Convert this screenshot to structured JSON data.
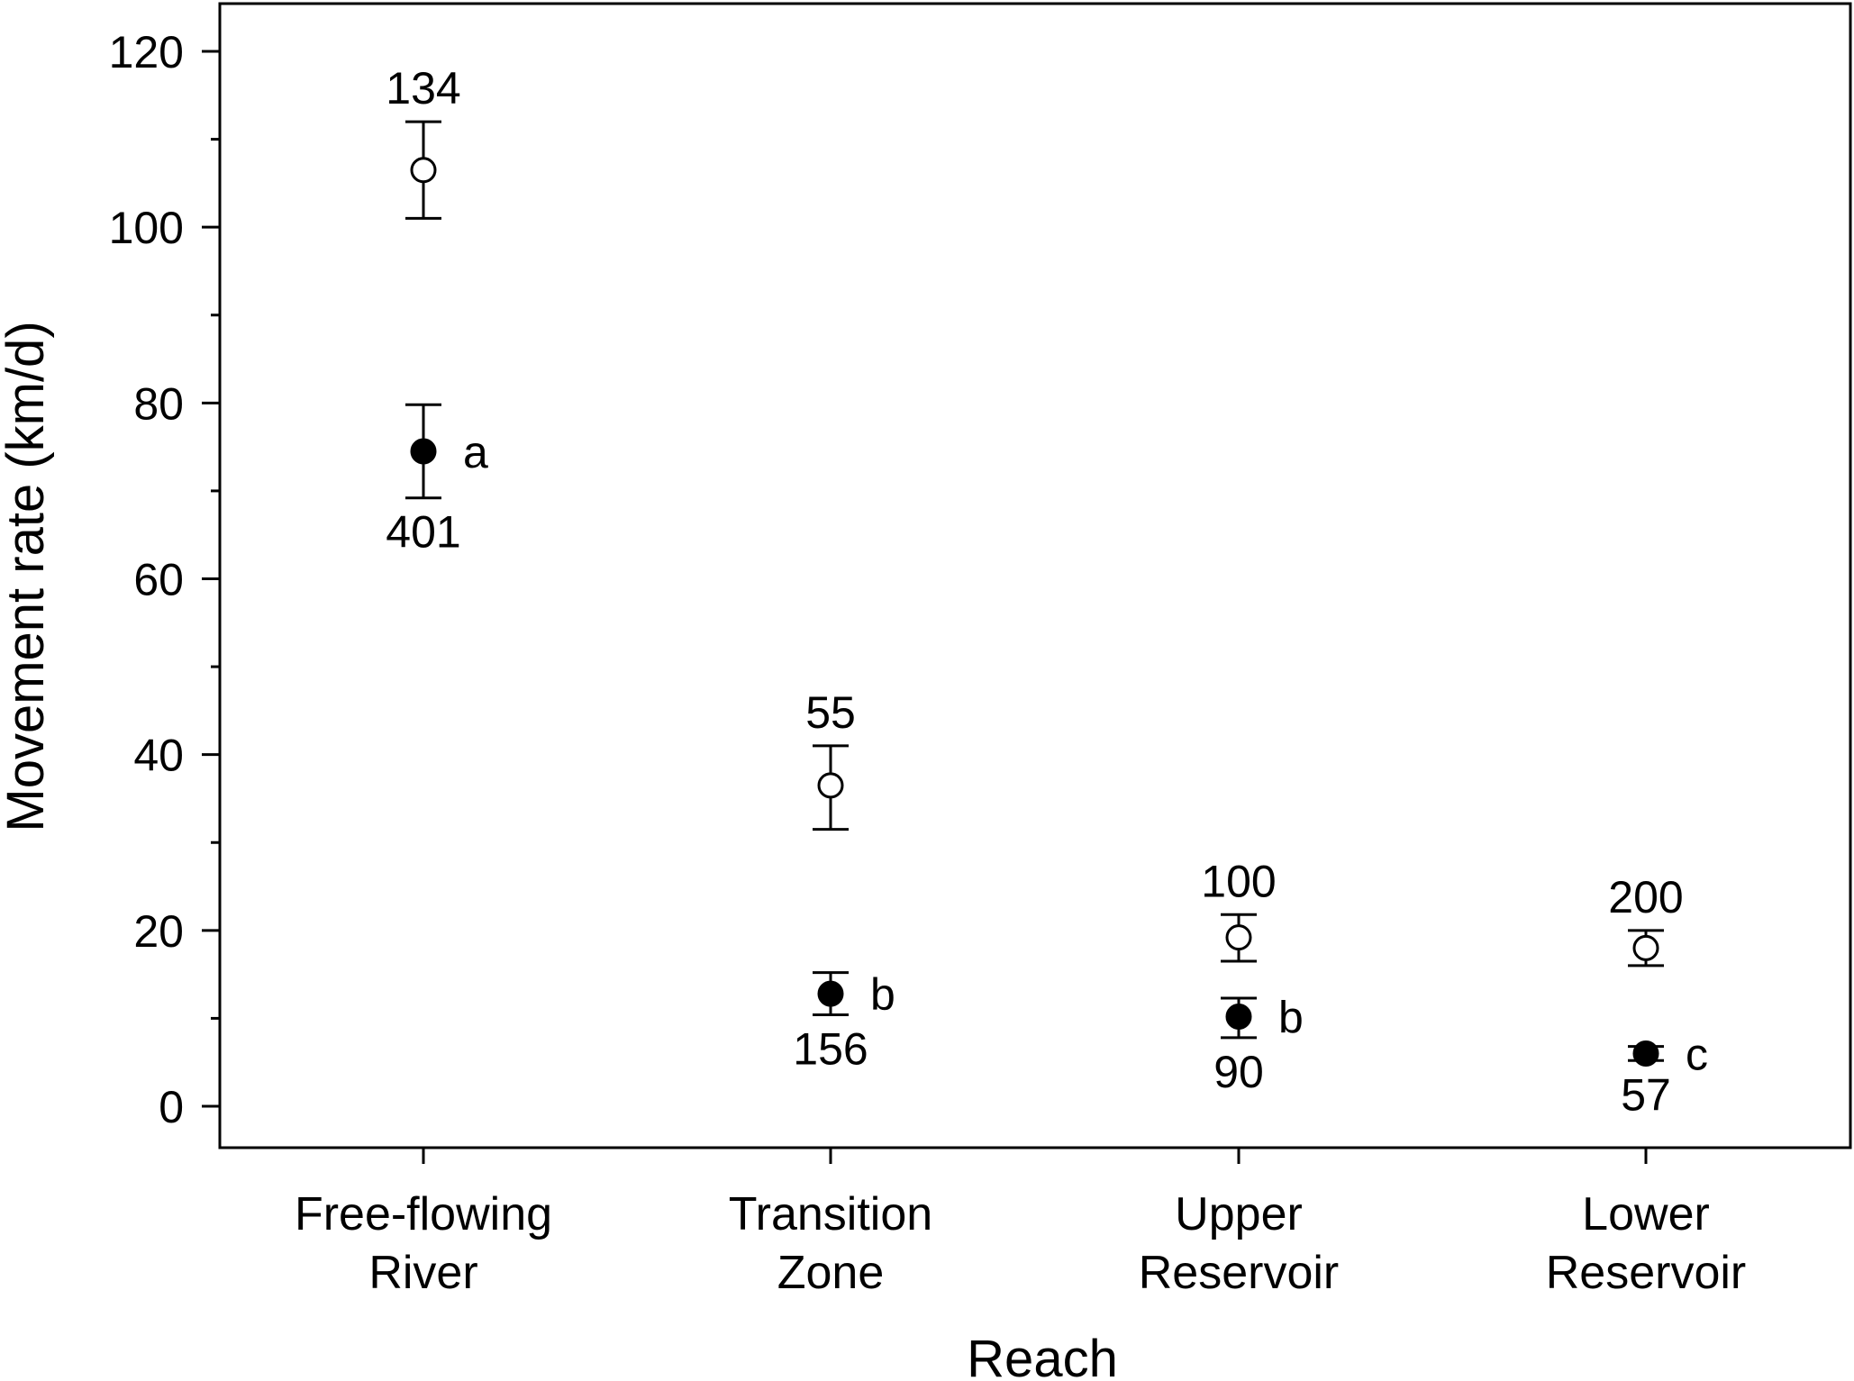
{
  "chart_data": {
    "type": "scatter",
    "title": "",
    "xlabel": "Reach",
    "ylabel": "Movement rate (km/d)",
    "ylim": [
      0,
      120
    ],
    "yticks": [
      0,
      20,
      40,
      60,
      80,
      100,
      120
    ],
    "yminor_step": 10,
    "categories": [
      [
        "Free-flowing",
        "River"
      ],
      [
        "Transition",
        "Zone"
      ],
      [
        "Upper",
        "Reservoir"
      ],
      [
        "Lower",
        "Reservoir"
      ]
    ],
    "series": [
      {
        "marker": "open-circle",
        "values": [
          106.5,
          36.5,
          19.2,
          18.0
        ],
        "err_low": [
          101.0,
          31.5,
          16.5,
          16.0
        ],
        "err_high": [
          112.0,
          41.0,
          21.8,
          20.0
        ],
        "n_labels": [
          "134",
          "55",
          "100",
          "200"
        ],
        "sig_labels": [
          "",
          "",
          "",
          ""
        ]
      },
      {
        "marker": "filled-circle",
        "values": [
          74.5,
          12.8,
          10.2,
          6.0
        ],
        "err_low": [
          69.2,
          10.4,
          7.8,
          5.2
        ],
        "err_high": [
          79.8,
          15.2,
          12.3,
          6.8
        ],
        "n_labels": [
          "401",
          "156",
          "90",
          "57"
        ],
        "sig_labels": [
          "a",
          "b",
          "b",
          "c"
        ]
      }
    ],
    "grid": false,
    "legend": "none"
  },
  "colors": {
    "open_marker_fill": "#ffffff",
    "filled_marker_fill": "#000000",
    "axis": "#000000"
  }
}
